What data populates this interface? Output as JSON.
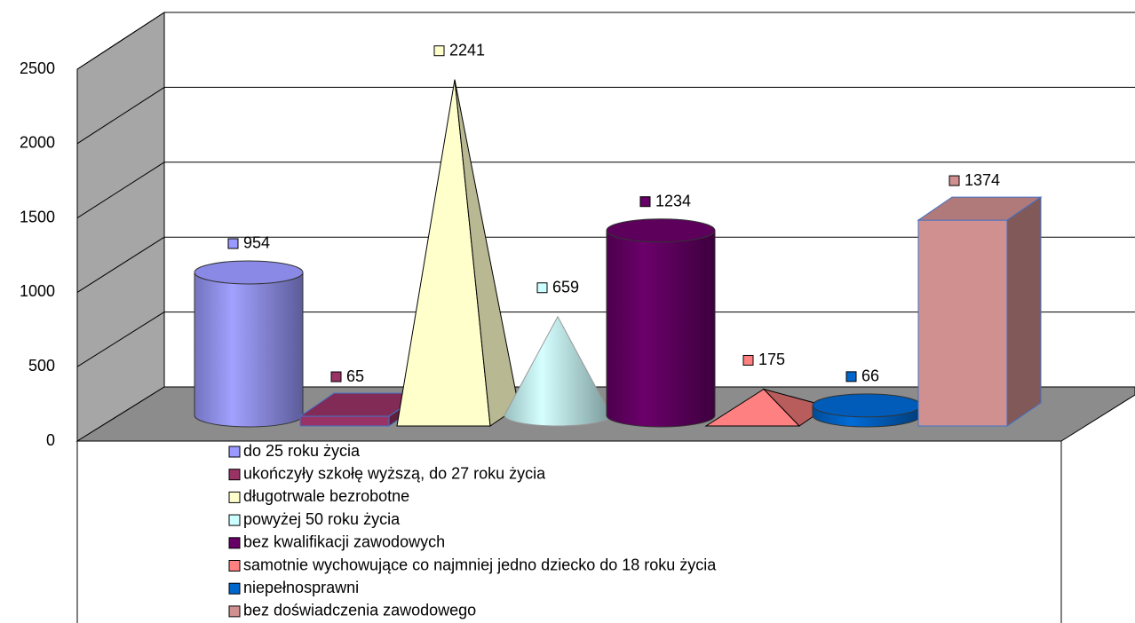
{
  "chart_data": {
    "type": "bar3d",
    "ylim": [
      0,
      2500
    ],
    "yticks": [
      0,
      500,
      1000,
      1500,
      2000,
      2500
    ],
    "grid": true,
    "legend": "bottom",
    "series": [
      {
        "name": "do 25 roku życia",
        "color": "#9999ff",
        "shape": "cylinder",
        "values": [
          954
        ]
      },
      {
        "name": "ukończyły szkołę wyższą, do 27 roku życia",
        "color": "#993366",
        "shape": "box",
        "values": [
          65
        ]
      },
      {
        "name": "długotrwale bezrobotne",
        "color": "#ffffcc",
        "shape": "pyramid",
        "values": [
          2241
        ]
      },
      {
        "name": "powyżej 50 roku życia",
        "color": "#ccffff",
        "shape": "cone",
        "values": [
          659
        ]
      },
      {
        "name": "bez kwalifikacji zawodowych",
        "color": "#660066",
        "shape": "cylinder",
        "values": [
          1234
        ]
      },
      {
        "name": "samotnie wychowujące co najmniej jedno dziecko do 18 roku życia",
        "color": "#ff8080",
        "shape": "pyramid",
        "values": [
          175
        ]
      },
      {
        "name": "niepełnosprawni",
        "color": "#0066cc",
        "shape": "cylinder",
        "values": [
          66
        ]
      },
      {
        "name": "bez doświadczenia zawodowego",
        "color": "#d09090",
        "shape": "box",
        "values": [
          1374
        ]
      }
    ]
  }
}
